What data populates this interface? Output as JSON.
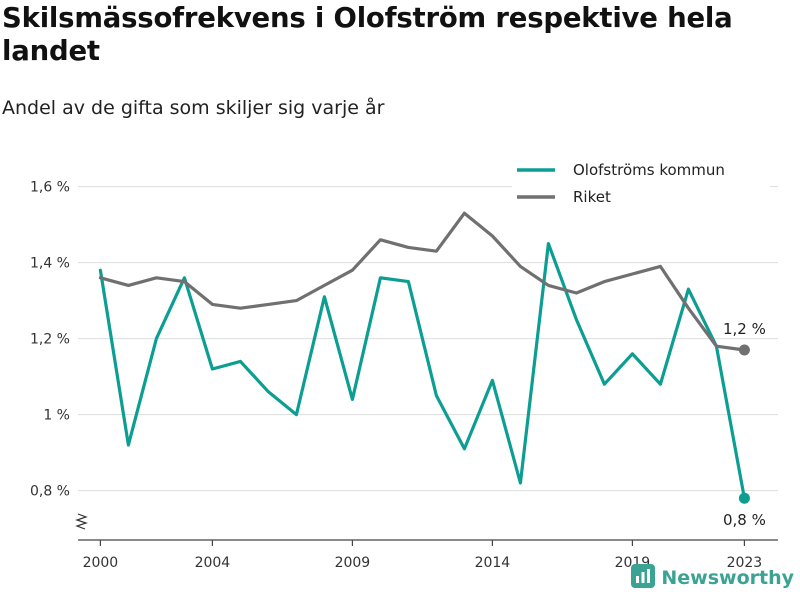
{
  "header": {
    "title": "Skilsmässofrekvens i Olofström respektive hela landet",
    "subtitle": "Andel av de gifta som skiljer sig varje år"
  },
  "brand": {
    "name": "Newsworthy",
    "color": "#3aa394",
    "icon": "newsworthy-logo-icon"
  },
  "chart_data": {
    "type": "line",
    "title": "Skilsmässofrekvens i Olofström respektive hela landet",
    "subtitle": "Andel av de gifta som skiljer sig varje år",
    "x": [
      2000,
      2001,
      2002,
      2003,
      2004,
      2005,
      2006,
      2007,
      2008,
      2009,
      2010,
      2011,
      2012,
      2013,
      2014,
      2015,
      2016,
      2017,
      2018,
      2019,
      2020,
      2021,
      2022,
      2023
    ],
    "series": [
      {
        "name": "Olofströms kommun",
        "color": "#0d9e93",
        "values": [
          1.38,
          0.92,
          1.2,
          1.36,
          1.12,
          1.14,
          1.06,
          1.0,
          1.31,
          1.04,
          1.36,
          1.35,
          1.05,
          0.91,
          1.09,
          0.82,
          1.45,
          1.25,
          1.08,
          1.16,
          1.08,
          1.33,
          1.18,
          0.78
        ]
      },
      {
        "name": "Riket",
        "color": "#707070",
        "values": [
          1.36,
          1.34,
          1.36,
          1.35,
          1.29,
          1.28,
          1.29,
          1.3,
          1.34,
          1.38,
          1.46,
          1.44,
          1.43,
          1.53,
          1.47,
          1.39,
          1.34,
          1.32,
          1.35,
          1.37,
          1.39,
          1.28,
          1.18,
          1.17
        ]
      }
    ],
    "x_ticks": [
      2000,
      2004,
      2009,
      2014,
      2019,
      2023
    ],
    "y_ticks": [
      0.8,
      1.0,
      1.2,
      1.4,
      1.6
    ],
    "y_tick_labels": [
      "0,8 %",
      "1 %",
      "1,2 %",
      "1,4 %",
      "1,6 %"
    ],
    "ylim": [
      0.67,
      1.67
    ],
    "xlim": [
      1999.2,
      2024.2
    ],
    "y_axis_break": true,
    "grid": "horizontal",
    "legend_position": "top-right",
    "end_labels": [
      "0,8 %",
      "1,2 %"
    ]
  }
}
